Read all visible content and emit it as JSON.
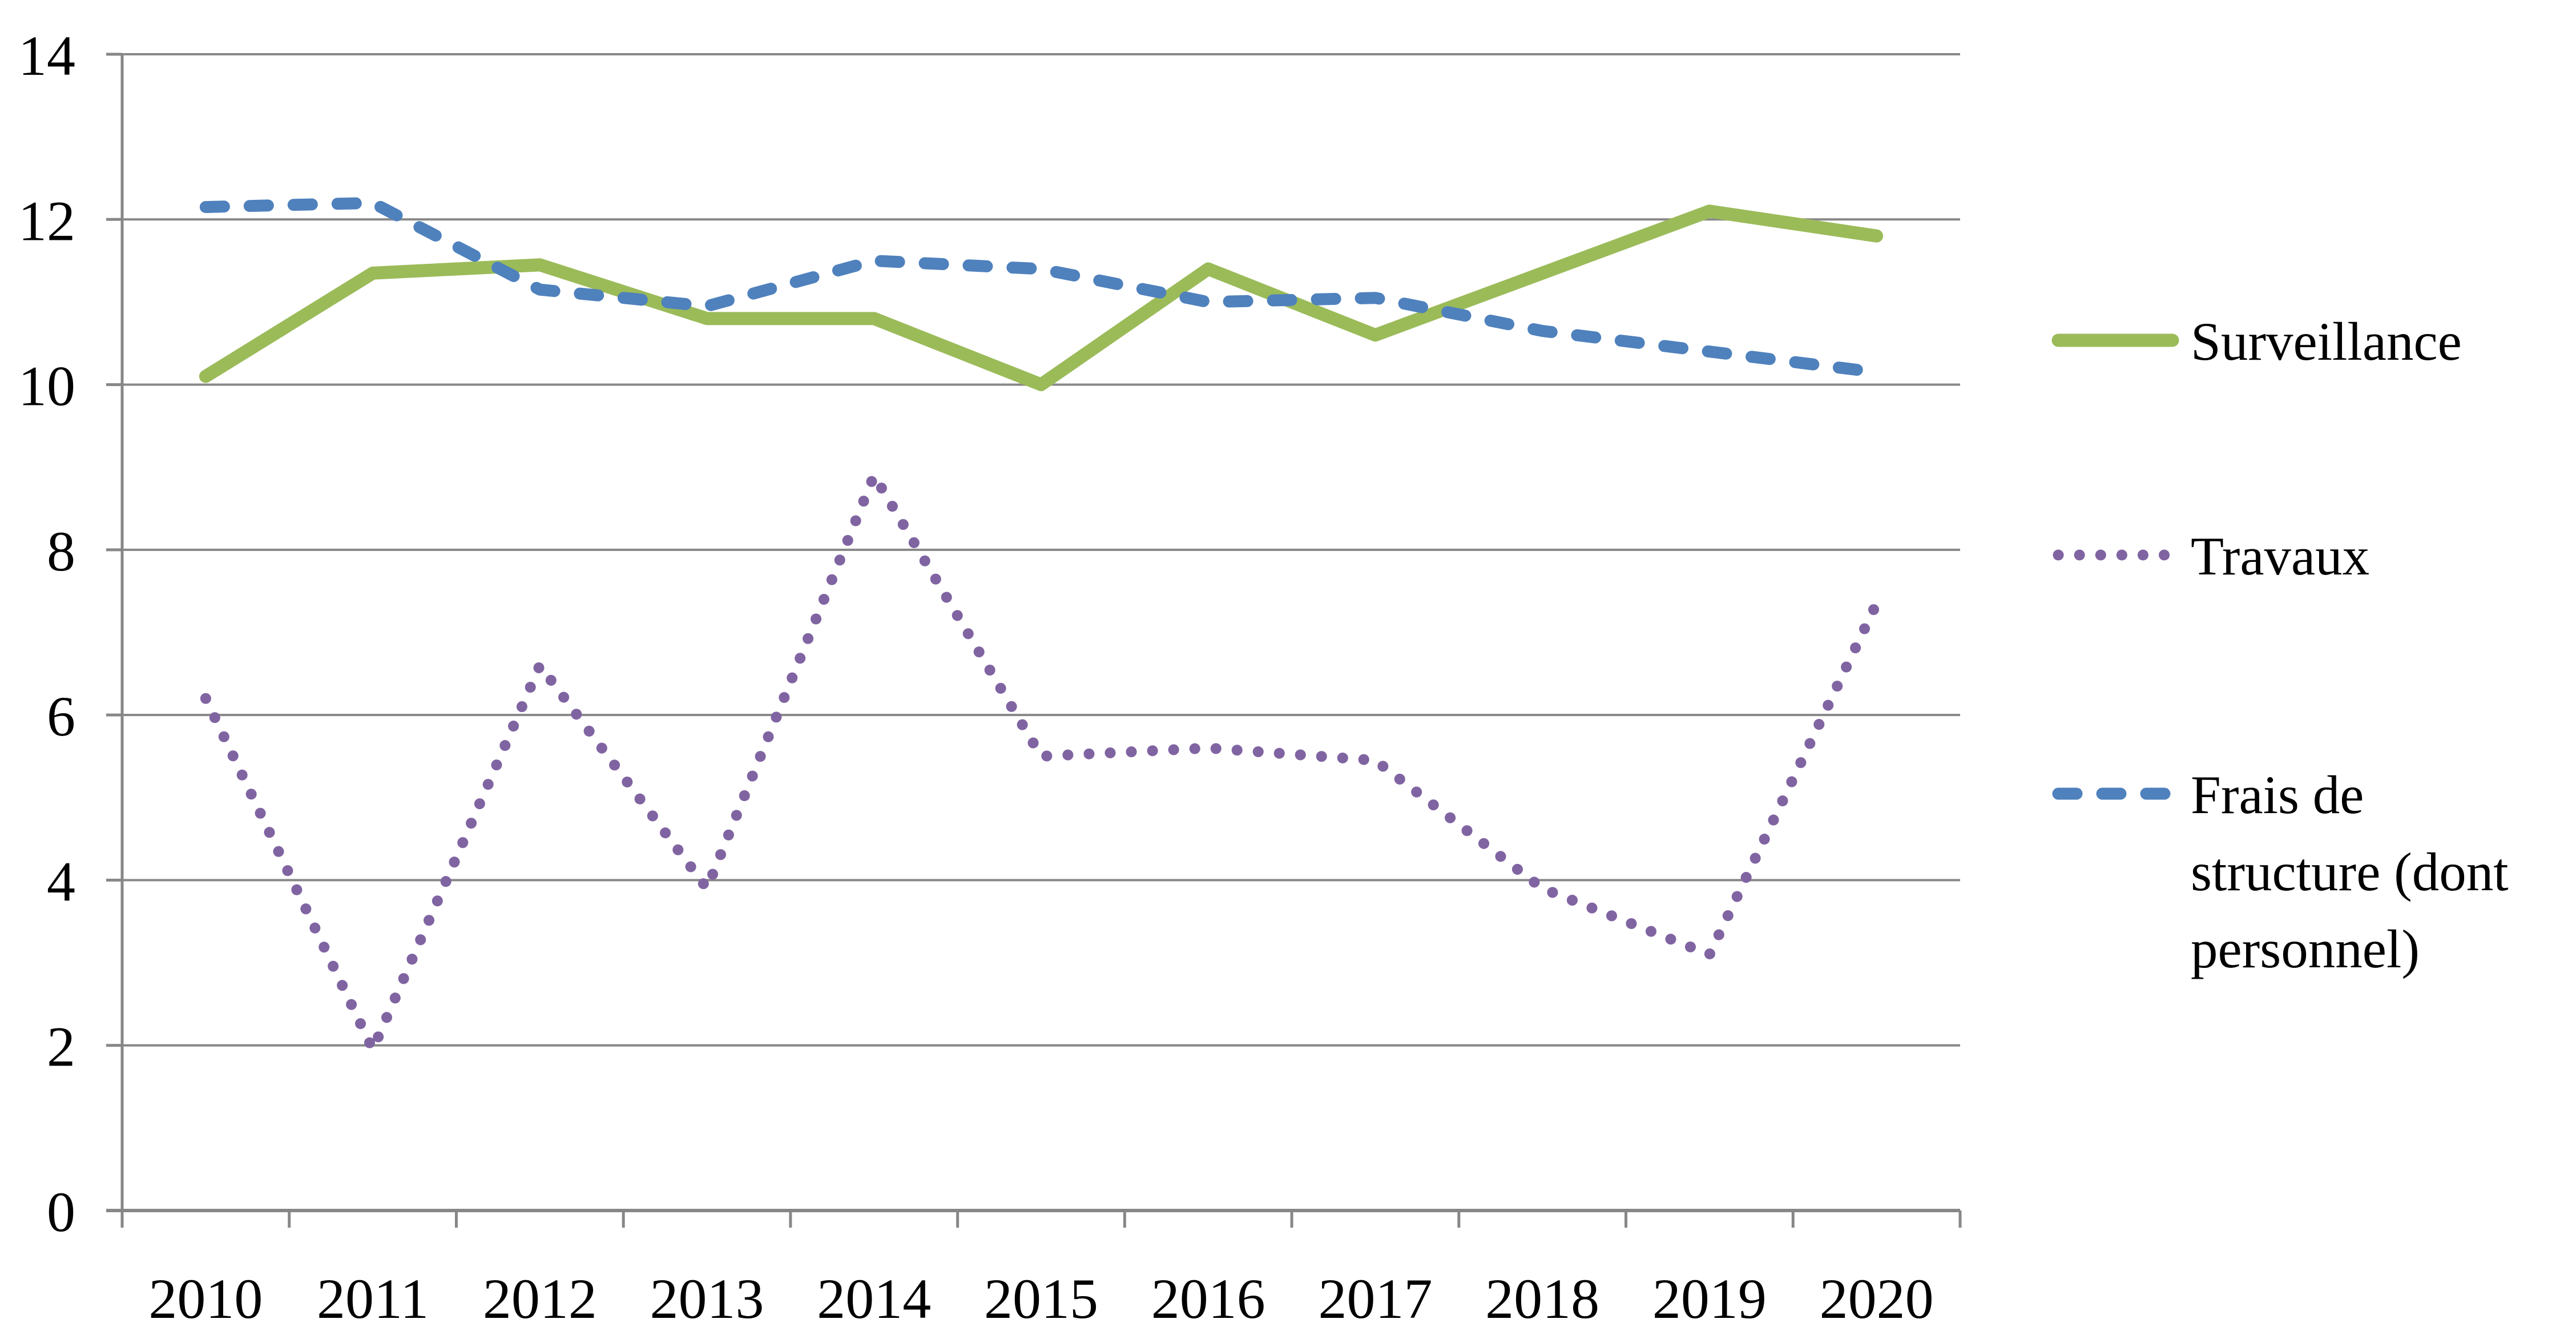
{
  "chart_data": {
    "type": "line",
    "title": "",
    "x": [
      2010,
      2011,
      2012,
      2013,
      2014,
      2015,
      2016,
      2017,
      2018,
      2019,
      2020
    ],
    "x_tick_labels": [
      "2010",
      "2011",
      "2012",
      "2013",
      "2014",
      "2015",
      "2016",
      "2017",
      "2018",
      "2019",
      "2020"
    ],
    "series": [
      {
        "name": "Surveillance",
        "color": "#9BBB59",
        "line_style": "solid",
        "values": [
          10.1,
          11.35,
          11.45,
          10.8,
          10.8,
          10.0,
          11.4,
          10.6,
          11.35,
          12.1,
          11.8
        ]
      },
      {
        "name": "Travaux",
        "color": "#8064A2",
        "line_style": "dotted",
        "values": [
          6.2,
          1.95,
          6.6,
          3.9,
          8.9,
          5.5,
          5.6,
          5.45,
          3.9,
          3.1,
          7.35
        ]
      },
      {
        "name": "Frais de structure (dont personnel)",
        "color": "#4F81BD",
        "line_style": "dashed",
        "values": [
          12.15,
          12.2,
          11.15,
          10.95,
          11.5,
          11.4,
          11.0,
          11.05,
          10.65,
          10.4,
          10.15
        ]
      }
    ],
    "ylim": [
      0,
      14
    ],
    "ytick_step": 2,
    "y_tick_labels": [
      "0",
      "2",
      "4",
      "6",
      "8",
      "10",
      "12",
      "14"
    ],
    "grid": "horizontal",
    "legend_position": "right",
    "legend_items": [
      {
        "series": "Surveillance",
        "label_lines": [
          "Surveillance"
        ]
      },
      {
        "series": "Travaux",
        "label_lines": [
          "Travaux"
        ]
      },
      {
        "series": "Frais de structure (dont personnel)",
        "label_lines": [
          "Frais de",
          "structure (dont",
          "personnel)"
        ]
      }
    ],
    "colors": {
      "axis": "#878787",
      "grid": "#878787",
      "text": "#000000",
      "background": "#FFFFFF"
    }
  }
}
